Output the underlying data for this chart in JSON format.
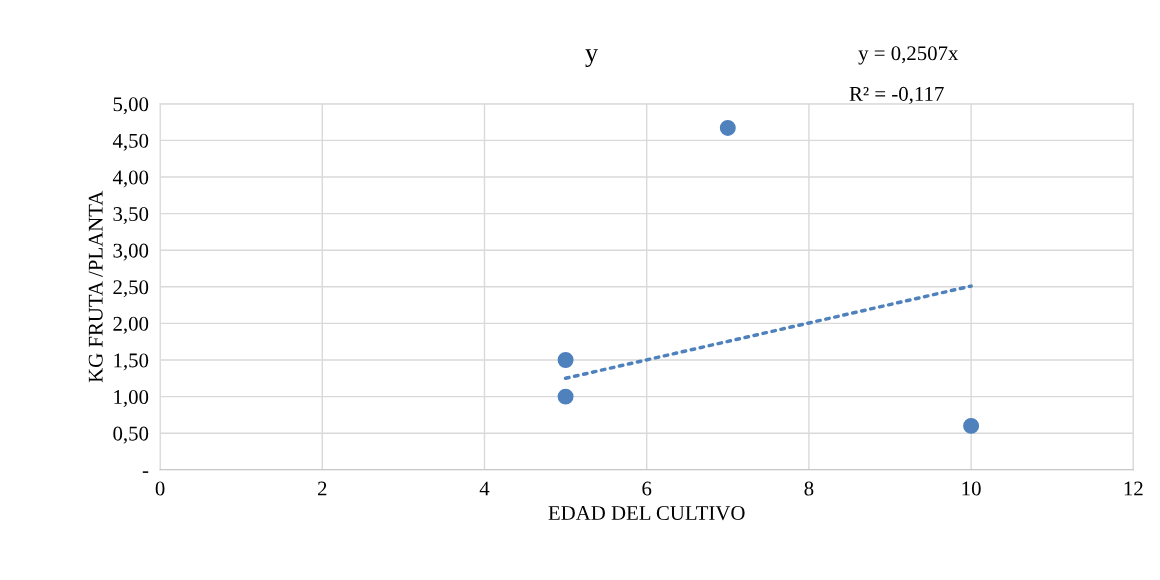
{
  "chart_data": {
    "type": "scatter",
    "title": "y",
    "xlabel": "EDAD DEL CULTIVO",
    "ylabel": "KG FRUTA /PLANTA",
    "annotations": [
      "y = 0,2507x",
      "R² = -0,117"
    ],
    "series": [
      {
        "color": "#4f81bd",
        "x": [
          5,
          5,
          7,
          10
        ],
        "values": [
          1.5,
          1.0,
          4.67,
          0.6
        ],
        "marker": "circle"
      },
      {
        "type": "line",
        "color": "#4f81bd",
        "x": [
          5,
          10
        ],
        "values": [
          1.25,
          2.51
        ],
        "line_style": "dotted",
        "marker": "none"
      }
    ],
    "xlim": [
      0,
      12
    ],
    "xticks": [
      0,
      2,
      4,
      6,
      8,
      10,
      12
    ],
    "ylim": [
      0,
      5
    ],
    "yticks": [
      {
        "value": 0,
        "label": "-"
      },
      {
        "value": 0.5,
        "label": "0,50"
      },
      {
        "value": 1,
        "label": "1,00"
      },
      {
        "value": 1.5,
        "label": "1,50"
      },
      {
        "value": 2,
        "label": "2,00"
      },
      {
        "value": 2.5,
        "label": "2,50"
      },
      {
        "value": 3,
        "label": "3,00"
      },
      {
        "value": 3.5,
        "label": "3,50"
      },
      {
        "value": 4,
        "label": "4,00"
      },
      {
        "value": 4.5,
        "label": "4,50"
      },
      {
        "value": 5,
        "label": "5,00"
      }
    ],
    "grid": true
  }
}
